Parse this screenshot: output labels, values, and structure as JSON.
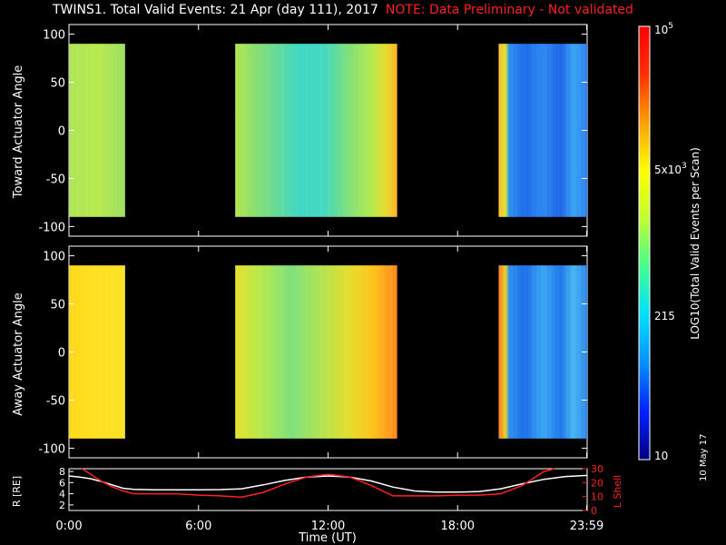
{
  "title": {
    "main": "TWINS1. Total Valid Events: 21 Apr (day 111), 2017",
    "note": "NOTE: Data Preliminary - Not validated"
  },
  "stamp": "10 May 17",
  "chart_data": [
    {
      "type": "heatmap",
      "ylabel": "Toward Actuator Angle",
      "ylim": [
        -110,
        110
      ],
      "yticks": [
        "100",
        "50",
        "0",
        "-50",
        "-100"
      ],
      "x_range_hours": [
        0,
        24
      ],
      "data_extent_y": [
        -90,
        90
      ],
      "blocks": [
        {
          "start_h": 0.0,
          "end_h": 2.6,
          "stops": [
            [
              0,
              "#aee455"
            ],
            [
              0.5,
              "#b8ea4c"
            ],
            [
              0.8,
              "#a8e35a"
            ],
            [
              1,
              "#9ddf60"
            ]
          ]
        },
        {
          "start_h": 7.7,
          "end_h": 15.2,
          "stops": [
            [
              0,
              "#b4e64e"
            ],
            [
              0.15,
              "#82de78"
            ],
            [
              0.4,
              "#3fd7c6"
            ],
            [
              0.55,
              "#45d9c0"
            ],
            [
              0.7,
              "#7fe07b"
            ],
            [
              0.85,
              "#b8ea4c"
            ],
            [
              0.93,
              "#e8d92e"
            ],
            [
              1,
              "#ffb32a"
            ]
          ]
        },
        {
          "start_h": 19.9,
          "end_h": 24.0,
          "stops": [
            [
              0,
              "#ffc020"
            ],
            [
              0.08,
              "#d6e23a"
            ],
            [
              0.12,
              "#2a8ef0"
            ],
            [
              0.3,
              "#1f6ce8"
            ],
            [
              0.5,
              "#2c88f2"
            ],
            [
              0.7,
              "#1e66e6"
            ],
            [
              0.85,
              "#3aa3f4"
            ],
            [
              1,
              "#2a7ff0"
            ]
          ]
        }
      ]
    },
    {
      "type": "heatmap",
      "ylabel": "Away Actuator Angle",
      "ylim": [
        -110,
        110
      ],
      "yticks": [
        "100",
        "50",
        "0",
        "-50",
        "-100"
      ],
      "x_range_hours": [
        0,
        24
      ],
      "data_extent_y": [
        -90,
        90
      ],
      "blocks": [
        {
          "start_h": 0.0,
          "end_h": 2.6,
          "stops": [
            [
              0,
              "#ffd818"
            ],
            [
              0.5,
              "#ffe020"
            ],
            [
              1,
              "#f8e224"
            ]
          ]
        },
        {
          "start_h": 7.7,
          "end_h": 15.2,
          "stops": [
            [
              0,
              "#e8e02c"
            ],
            [
              0.15,
              "#b8ea4c"
            ],
            [
              0.35,
              "#7ee07c"
            ],
            [
              0.5,
              "#a9e458"
            ],
            [
              0.7,
              "#e4de30"
            ],
            [
              0.85,
              "#ffc41c"
            ],
            [
              1,
              "#ff8a1e"
            ]
          ]
        },
        {
          "start_h": 19.9,
          "end_h": 24.0,
          "stops": [
            [
              0,
              "#ff7a1a"
            ],
            [
              0.08,
              "#e8d22c"
            ],
            [
              0.12,
              "#2a90f0"
            ],
            [
              0.3,
              "#1e6ee8"
            ],
            [
              0.5,
              "#3aa6f4"
            ],
            [
              0.7,
              "#2078ea"
            ],
            [
              0.85,
              "#46b8f0"
            ],
            [
              1,
              "#2a84f0"
            ]
          ]
        }
      ]
    },
    {
      "type": "line",
      "xlabel": "Time (UT)",
      "ylabel_left": "R [RE]",
      "ylabel_right": "L Shell",
      "left_ylim": [
        1,
        8.5
      ],
      "right_ylim": [
        0,
        30
      ],
      "left_ticks": [
        "8",
        "6",
        "4",
        "2"
      ],
      "right_ticks": [
        "30",
        "20",
        "10",
        "0"
      ],
      "xticks": [
        "0:00",
        "6:00",
        "12:00",
        "18:00",
        "23:59"
      ],
      "xtick_hours": [
        0,
        6,
        12,
        18,
        23.98
      ],
      "series": [
        {
          "color": "#ffffff",
          "axis": "left",
          "x": [
            0,
            0.5,
            1,
            1.5,
            2,
            2.5,
            3,
            4,
            5,
            6,
            7,
            8,
            9,
            10,
            11,
            12,
            13,
            14,
            15,
            16,
            17,
            18,
            19,
            20,
            21,
            22,
            23,
            24
          ],
          "y": [
            7.2,
            7.0,
            6.7,
            6.2,
            5.6,
            5.0,
            4.8,
            4.7,
            4.7,
            4.7,
            4.75,
            4.9,
            5.6,
            6.4,
            7.0,
            7.2,
            7.0,
            6.3,
            5.2,
            4.5,
            4.3,
            4.3,
            4.4,
            4.9,
            5.8,
            6.6,
            7.1,
            7.3
          ]
        },
        {
          "color": "#ff2020",
          "axis": "right",
          "x": [
            0.6,
            1,
            1.5,
            2,
            2.5,
            3,
            4,
            5,
            6,
            7,
            8,
            9,
            10,
            11,
            12,
            13,
            14,
            15,
            16,
            17,
            18,
            19,
            20,
            21,
            21.5,
            22,
            22.5
          ],
          "y": [
            30,
            26,
            21,
            17,
            14,
            12,
            12,
            12,
            11,
            10.5,
            9.5,
            13,
            19,
            24,
            26,
            24,
            18,
            10.5,
            10.5,
            10.5,
            11,
            11,
            12,
            18,
            23,
            28,
            30
          ]
        }
      ]
    }
  ],
  "colorbar": {
    "label": "LOG10(Total Valid Events per Scan)",
    "tick_10e5": "10",
    "tick_10e5_exp": "5",
    "tick_5e3": "5x10",
    "tick_5e3_exp": "3",
    "tick_215": "215",
    "tick_10": "10",
    "colors": [
      "#000080",
      "#0020ff",
      "#0090ff",
      "#00e0ff",
      "#40ff90",
      "#c0ff30",
      "#ffff00",
      "#ffa000",
      "#ff3000",
      "#ff0000"
    ]
  }
}
